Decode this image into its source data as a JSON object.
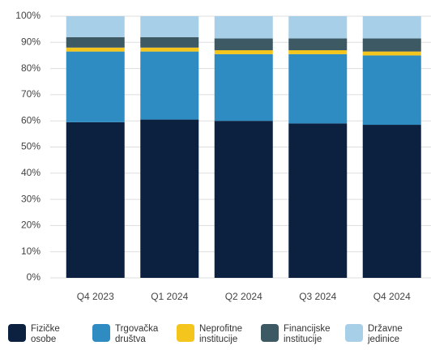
{
  "chart_data": {
    "type": "stacked_bar",
    "categories": [
      "Q4 2023",
      "Q1 2024",
      "Q2 2024",
      "Q3 2024",
      "Q4 2024"
    ],
    "series": [
      {
        "name": "Fizičke osobe",
        "color": "#0c2140",
        "values": [
          59.5,
          60.5,
          60,
          59,
          58.5
        ]
      },
      {
        "name": "Trgovačka društva",
        "color": "#2f8cc2",
        "values": [
          27,
          26,
          25.5,
          26.5,
          26.5
        ]
      },
      {
        "name": "Neprofitne institucije",
        "color": "#f4c51c",
        "values": [
          1.5,
          1.5,
          1.5,
          1.5,
          1.5
        ]
      },
      {
        "name": "Financijske institucije",
        "color": "#3c5964",
        "values": [
          4,
          4,
          4.5,
          4.5,
          5
        ]
      },
      {
        "name": "Državne jedinice",
        "color": "#a8cfe8",
        "values": [
          8,
          8,
          8.5,
          8.5,
          8.5
        ]
      }
    ],
    "ylim": [
      0,
      100
    ],
    "yticks": [
      {
        "value": 0,
        "label": "0%"
      },
      {
        "value": 10,
        "label": "10%"
      },
      {
        "value": 20,
        "label": "20%"
      },
      {
        "value": 30,
        "label": "30%"
      },
      {
        "value": 40,
        "label": "40%"
      },
      {
        "value": 50,
        "label": "50%"
      },
      {
        "value": 60,
        "label": "60%"
      },
      {
        "value": 70,
        "label": "70%"
      },
      {
        "value": 80,
        "label": "80%"
      },
      {
        "value": 90,
        "label": "90%"
      },
      {
        "value": 100,
        "label": "100%"
      }
    ],
    "grid": true
  }
}
